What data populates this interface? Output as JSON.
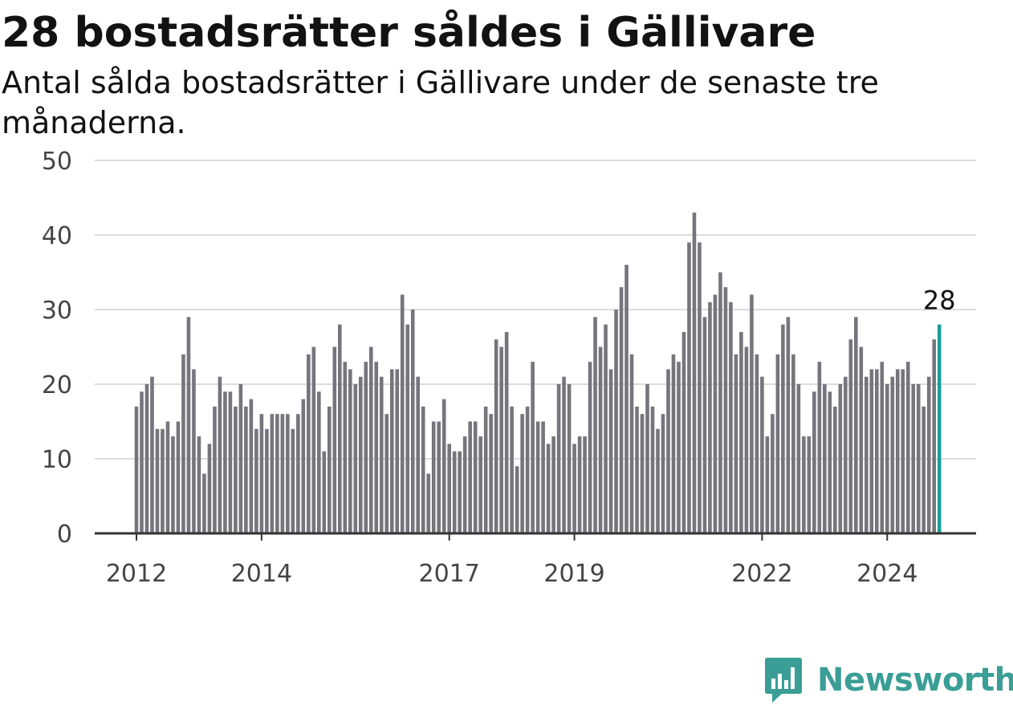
{
  "chart_data": {
    "type": "bar",
    "title": "28 bostadsrätter såldes i Gällivare",
    "subtitle": "Antal sålda bostadsrätter i Gällivare under de senaste tre månaderna.",
    "xlabel": "",
    "ylabel": "",
    "ylim": [
      0,
      50
    ],
    "yticks": [
      0,
      10,
      20,
      30,
      40,
      50
    ],
    "grid": true,
    "x_start": "2012-01",
    "xtick_labels": [
      "2012",
      "2014",
      "2017",
      "2019",
      "2022",
      "2024"
    ],
    "values": [
      17,
      19,
      20,
      21,
      14,
      14,
      15,
      13,
      15,
      24,
      29,
      22,
      13,
      8,
      12,
      17,
      21,
      19,
      19,
      17,
      20,
      17,
      18,
      14,
      16,
      14,
      16,
      16,
      16,
      16,
      14,
      16,
      18,
      24,
      25,
      19,
      11,
      17,
      25,
      28,
      23,
      22,
      20,
      21,
      23,
      25,
      23,
      21,
      16,
      22,
      22,
      32,
      28,
      30,
      21,
      17,
      8,
      15,
      15,
      18,
      12,
      11,
      11,
      13,
      15,
      15,
      13,
      17,
      16,
      26,
      25,
      27,
      17,
      9,
      16,
      17,
      23,
      15,
      15,
      12,
      13,
      20,
      21,
      20,
      12,
      13,
      13,
      23,
      29,
      25,
      28,
      22,
      30,
      33,
      36,
      24,
      17,
      16,
      20,
      17,
      14,
      16,
      22,
      24,
      23,
      27,
      39,
      43,
      39,
      29,
      31,
      32,
      35,
      33,
      31,
      24,
      27,
      25,
      32,
      24,
      21,
      13,
      16,
      24,
      28,
      29,
      24,
      20,
      13,
      13,
      19,
      23,
      20,
      19,
      17,
      20,
      21,
      26,
      29,
      25,
      21,
      22,
      22,
      23,
      20,
      21,
      22,
      22,
      23,
      20,
      20,
      17,
      21,
      26,
      28
    ],
    "highlight_index": 154,
    "bar_color": "#76757c",
    "highlight_color": "#1a9e96",
    "annotation": "28"
  },
  "brand": {
    "name": "Newsworthy",
    "icon": "newsworthy-logo-icon",
    "color": "#3a9e96"
  }
}
